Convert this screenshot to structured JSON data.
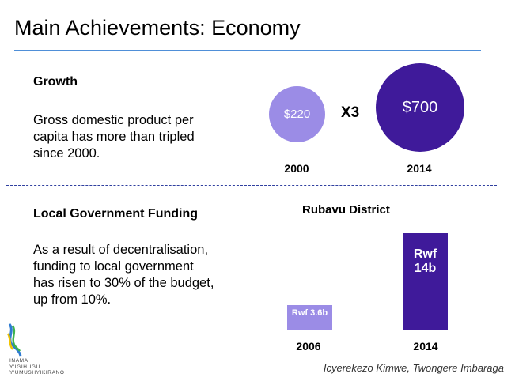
{
  "slide": {
    "title": "Main Achievements: Economy",
    "footer": "Icyerekezo Kimwe, Twongere Imbaraga"
  },
  "growth": {
    "heading": "Growth",
    "lines": [
      "Gross domestic product per",
      "capita has more than tripled",
      "since 2000."
    ],
    "small_value": "$220",
    "multiplier": "X3",
    "large_value": "$700",
    "year_small": "2000",
    "year_large": "2014"
  },
  "funding": {
    "heading": "Local Government Funding",
    "lines": [
      "As a result of decentralisation,",
      "funding to local government",
      "has risen to 30% of the budget,",
      "up from 10%."
    ]
  },
  "chart_data": {
    "type": "bar",
    "title": "Rubavu District",
    "categories": [
      "2006",
      "2014"
    ],
    "values": [
      3.6,
      14
    ],
    "data_labels": [
      "Rwf 3.6b",
      "Rwf 14b"
    ],
    "colors": [
      "#9b8ce6",
      "#3f1a9a"
    ]
  },
  "logo": {
    "lines": [
      "INAMA",
      "Y'IGIHUGU",
      "Y'UMUSHYIKIRANO"
    ]
  }
}
